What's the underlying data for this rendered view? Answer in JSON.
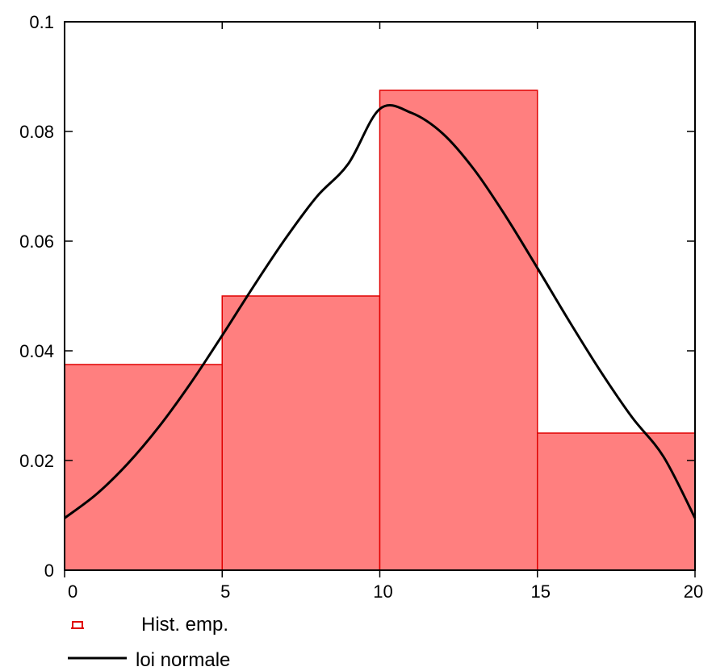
{
  "chart_data": {
    "type": "bar",
    "xlim": [
      0,
      20
    ],
    "ylim": [
      0,
      0.1
    ],
    "grid": false,
    "legend_position": "bottom-left",
    "x_ticks": [
      "0",
      "5",
      "10",
      "15",
      "20"
    ],
    "y_ticks": [
      "0",
      "0.02",
      "0.04",
      "0.06",
      "0.08",
      "0.1"
    ],
    "series": [
      {
        "name": "Hist. emp.",
        "kind": "histogram",
        "color": "#ff7f7f",
        "edge_color": "#e00000",
        "bins": [
          {
            "x0": 0,
            "x1": 5,
            "value": 0.0375
          },
          {
            "x0": 5,
            "x1": 10,
            "value": 0.05
          },
          {
            "x0": 10,
            "x1": 15,
            "value": 0.0875
          },
          {
            "x0": 15,
            "x1": 20,
            "value": 0.025
          }
        ]
      },
      {
        "name": "loi normale",
        "kind": "line",
        "color": "#000000",
        "x": [
          0,
          1,
          2,
          3,
          4,
          5,
          6,
          7,
          8,
          9,
          10,
          11,
          12,
          13,
          14,
          15,
          16,
          17,
          18,
          19,
          20
        ],
        "y": [
          0.0095,
          0.0138,
          0.0194,
          0.0262,
          0.0341,
          0.0428,
          0.0518,
          0.0604,
          0.0681,
          0.0741,
          0.0841,
          0.0834,
          0.0796,
          0.073,
          0.0645,
          0.0551,
          0.0455,
          0.0363,
          0.0279,
          0.0207,
          0.0095
        ]
      }
    ]
  }
}
